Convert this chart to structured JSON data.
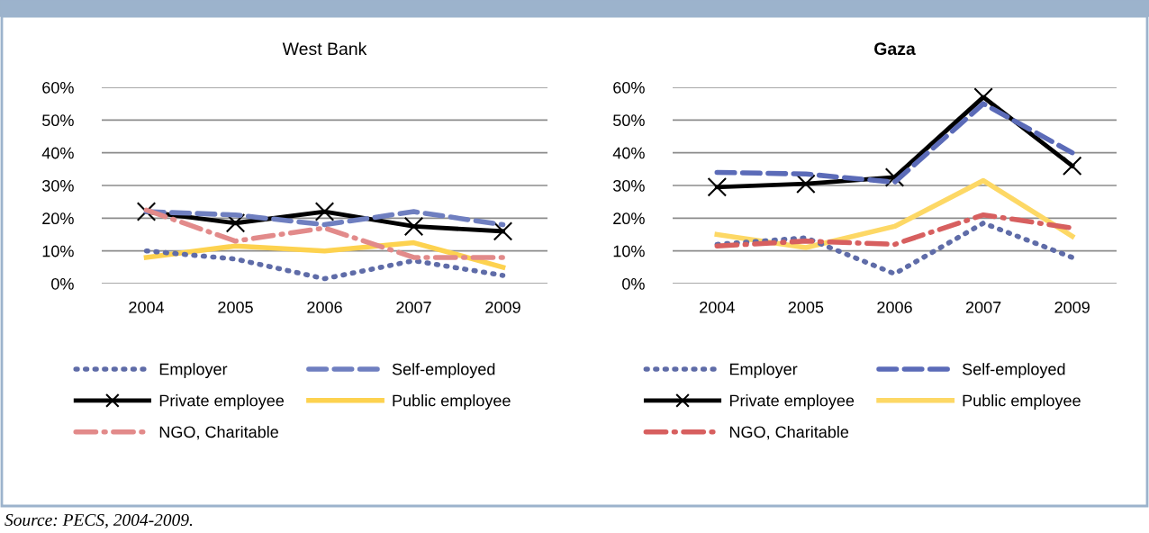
{
  "chart_data": [
    {
      "type": "line",
      "title": "West Bank",
      "categories": [
        "2004",
        "2005",
        "2006",
        "2007",
        "2009"
      ],
      "ylim": [
        0,
        0.6
      ],
      "yticks": [
        {
          "value": 0,
          "label": "0%"
        },
        {
          "value": 0.1,
          "label": "10%"
        },
        {
          "value": 0.2,
          "label": "20%"
        },
        {
          "value": 0.3,
          "label": "30%"
        },
        {
          "value": 0.4,
          "label": "40%"
        },
        {
          "value": 0.5,
          "label": "50%"
        },
        {
          "value": 0.6,
          "label": "60%"
        }
      ],
      "grid": "y",
      "legend": "bottom",
      "series": [
        {
          "name": "Employer",
          "color": "#5f6ca8",
          "line_style": "dotted",
          "marker": "none",
          "values": [
            0.1,
            0.075,
            0.015,
            0.07,
            0.025
          ]
        },
        {
          "name": "Self-employed",
          "color": "#6f7fc0",
          "line_style": "dashed",
          "marker": "none",
          "values": [
            0.22,
            0.21,
            0.18,
            0.22,
            0.18
          ]
        },
        {
          "name": "Private employee",
          "color": "#000000",
          "line_style": "solid",
          "marker": "cross",
          "values": [
            0.22,
            0.185,
            0.22,
            0.175,
            0.16
          ]
        },
        {
          "name": "Public employee",
          "color": "#fdd24f",
          "line_style": "solid",
          "marker": "none",
          "values": [
            0.08,
            0.115,
            0.1,
            0.125,
            0.05
          ]
        },
        {
          "name": "NGO, Charitable",
          "color": "#e28a8a",
          "line_style": "dashdot",
          "marker": "none",
          "values": [
            0.225,
            0.13,
            0.17,
            0.08,
            0.08
          ]
        }
      ]
    },
    {
      "type": "line",
      "title": "Gaza",
      "categories": [
        "2004",
        "2005",
        "2006",
        "2007",
        "2009"
      ],
      "ylim": [
        0,
        0.6
      ],
      "yticks": [
        {
          "value": 0,
          "label": "0%"
        },
        {
          "value": 0.1,
          "label": "10%"
        },
        {
          "value": 0.2,
          "label": "20%"
        },
        {
          "value": 0.3,
          "label": "30%"
        },
        {
          "value": 0.4,
          "label": "40%"
        },
        {
          "value": 0.5,
          "label": "50%"
        },
        {
          "value": 0.6,
          "label": "60%"
        }
      ],
      "grid": "y",
      "legend": "bottom",
      "series": [
        {
          "name": "Employer",
          "color": "#5f6ca8",
          "line_style": "dotted",
          "marker": "none",
          "values": [
            0.12,
            0.14,
            0.03,
            0.185,
            0.08
          ]
        },
        {
          "name": "Self-employed",
          "color": "#5b6bb8",
          "line_style": "dashed",
          "marker": "none",
          "values": [
            0.34,
            0.335,
            0.31,
            0.55,
            0.4
          ]
        },
        {
          "name": "Private employee",
          "color": "#000000",
          "line_style": "solid",
          "marker": "cross",
          "values": [
            0.295,
            0.305,
            0.325,
            0.57,
            0.36
          ]
        },
        {
          "name": "Public employee",
          "color": "#fdd865",
          "line_style": "solid",
          "marker": "none",
          "values": [
            0.15,
            0.11,
            0.175,
            0.315,
            0.145
          ]
        },
        {
          "name": "NGO, Charitable",
          "color": "#d75f5f",
          "line_style": "dashdot",
          "marker": "none",
          "values": [
            0.115,
            0.13,
            0.12,
            0.21,
            0.17
          ]
        }
      ],
      "annotations": [
        "Source: PECS, 2004-2009."
      ]
    }
  ]
}
